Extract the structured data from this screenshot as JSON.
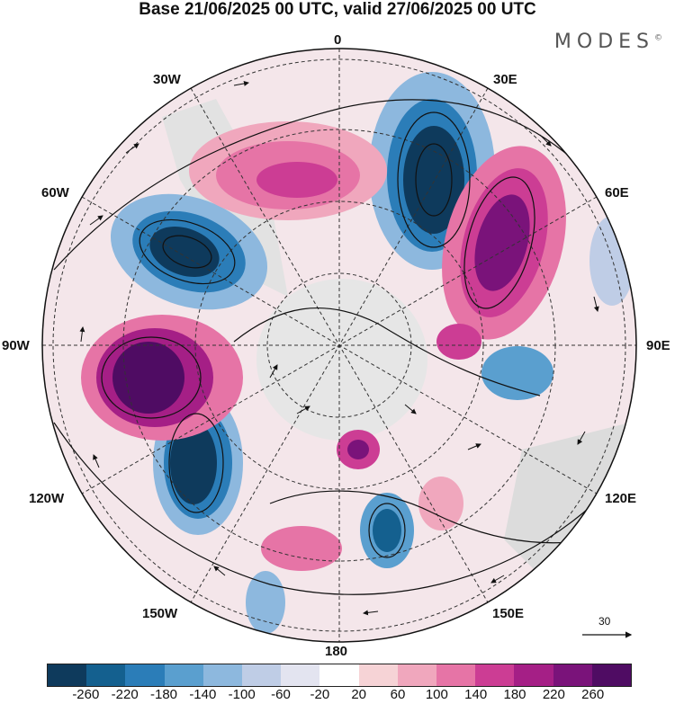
{
  "title": "Base 21/06/2025 00 UTC, valid 27/06/2025 00 UTC",
  "brand": "MODES",
  "brand_mark": "©",
  "longitude_labels": {
    "top": "0",
    "bottom": "180",
    "left": "90W",
    "right": "90E",
    "upper_left_30": "30W",
    "upper_right_30": "30E",
    "upper_left_60": "60W",
    "upper_right_60": "60E",
    "lower_left_120": "120W",
    "lower_right_120": "120E",
    "lower_left_150": "150W",
    "lower_right_150": "150E"
  },
  "reference_vector": "30",
  "colorbar": {
    "colors": [
      "#0e3a5c",
      "#14608f",
      "#2b7db8",
      "#5a9fcf",
      "#8db8de",
      "#bfcde6",
      "#e3e4f0",
      "#ffffff",
      "#f6d3d6",
      "#f0a7bd",
      "#e674a6",
      "#cc3d94",
      "#a51f86",
      "#7a137a",
      "#4f0c63"
    ],
    "tick_labels": [
      "-260",
      "-220",
      "-180",
      "-140",
      "-100",
      "-60",
      "-20",
      "20",
      "60",
      "100",
      "140",
      "180",
      "220",
      "260"
    ]
  }
}
